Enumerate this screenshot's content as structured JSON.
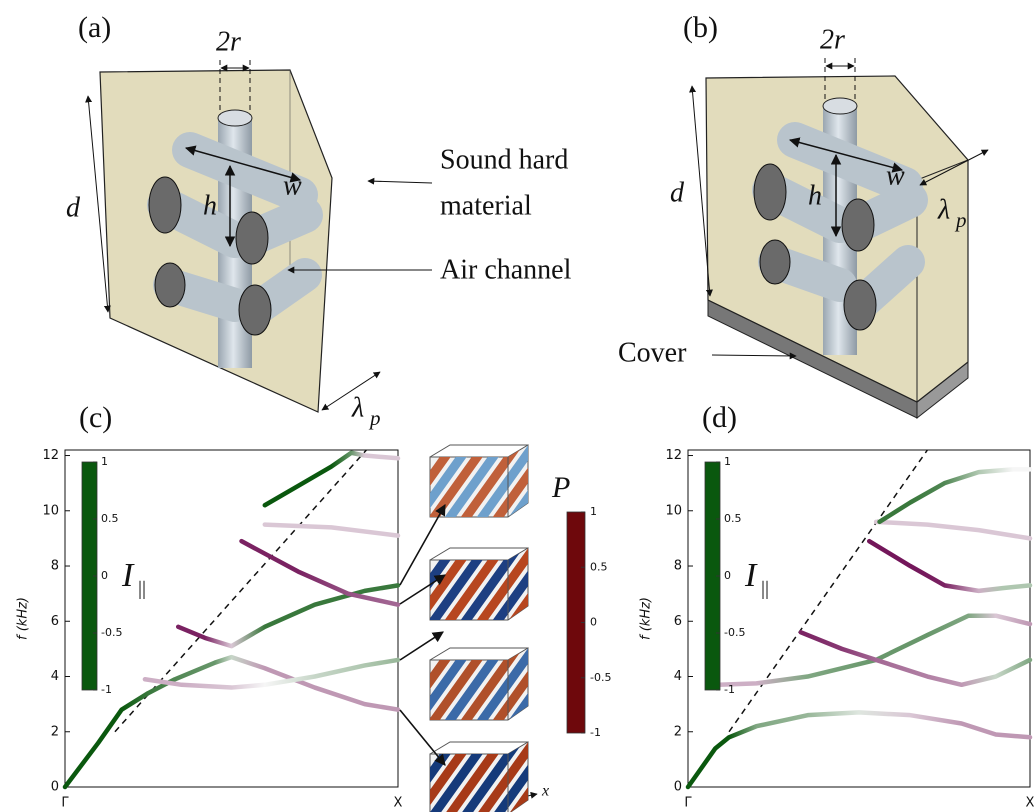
{
  "panel_a": {
    "label": "(a)",
    "diameter_label": "2r",
    "depth_label": "d",
    "height_label": "h",
    "width_label": "w",
    "material_label": [
      "Sound hard",
      "material"
    ],
    "channel_label": "Air channel",
    "period_label": {
      "symbol": "λ",
      "subscript": "p"
    }
  },
  "panel_b": {
    "label": "(b)",
    "diameter_label": "2r",
    "depth_label": "d",
    "height_label": "h",
    "width_label": "w",
    "period_label": {
      "symbol": "λ",
      "subscript": "p"
    },
    "cover_label": "Cover"
  },
  "chart_data": [
    {
      "type": "line",
      "panel_label": "(c)",
      "ylabel": "f (kHz)",
      "xlim": [
        0,
        1
      ],
      "ylim": [
        0,
        12.2
      ],
      "yticks": [
        0,
        2,
        4,
        6,
        8,
        10,
        12
      ],
      "xticks": [
        {
          "value": 0,
          "label": "Γ"
        },
        {
          "value": 1,
          "label": "X"
        }
      ],
      "light_line": {
        "x": [
          0.15,
          0.905
        ],
        "values": [
          2.0,
          12.2
        ]
      },
      "colorbar": {
        "label": "I",
        "subscript": "||",
        "lim": [
          -1,
          1
        ],
        "ticks": [
          1,
          0.5,
          0,
          -0.5,
          -1
        ]
      },
      "series": [
        {
          "x": [
            0,
            0.1,
            0.17,
            0.25,
            0.33,
            0.45,
            0.5,
            0.6,
            0.75,
            0.9,
            1
          ],
          "values": [
            0,
            1.6,
            2.8,
            3.4,
            3.9,
            4.5,
            4.7,
            4.3,
            3.6,
            3.0,
            2.8
          ],
          "intensity": [
            1,
            1,
            1,
            0.8,
            0.7,
            0.6,
            0.2,
            -0.4,
            -0.4,
            -0.4,
            -0.4
          ]
        },
        {
          "x": [
            0.24,
            0.35,
            0.5,
            0.6,
            0.75,
            0.9,
            1
          ],
          "values": [
            3.9,
            3.7,
            3.6,
            3.7,
            4.0,
            4.4,
            4.6
          ],
          "intensity": [
            -0.3,
            -0.3,
            -0.2,
            0,
            0.2,
            0.3,
            0.4
          ]
        },
        {
          "x": [
            0.34,
            0.42,
            0.5,
            0.6,
            0.75,
            0.9,
            1
          ],
          "values": [
            5.8,
            5.4,
            5.1,
            5.8,
            6.6,
            7.1,
            7.3
          ],
          "intensity": [
            -0.9,
            -0.9,
            -0.2,
            0.8,
            0.8,
            0.8,
            0.8
          ]
        },
        {
          "x": [
            0.53,
            0.7,
            0.85,
            1
          ],
          "values": [
            8.9,
            7.8,
            7.0,
            6.6
          ],
          "intensity": [
            -0.9,
            -0.9,
            -0.7,
            -0.6
          ]
        },
        {
          "x": [
            0.6,
            0.8,
            1
          ],
          "values": [
            9.5,
            9.4,
            9.1
          ],
          "intensity": [
            -0.2,
            -0.2,
            -0.2
          ]
        },
        {
          "x": [
            0.6,
            0.7,
            0.8,
            0.86,
            0.9,
            1
          ],
          "values": [
            10.2,
            10.9,
            11.6,
            12.1,
            12.0,
            11.9
          ],
          "intensity": [
            1,
            1,
            1,
            0.6,
            -0.2,
            -0.2
          ]
        }
      ]
    },
    {
      "type": "line",
      "panel_label": "(d)",
      "ylabel": "f (kHz)",
      "xlim": [
        0,
        1
      ],
      "ylim": [
        0,
        12.2
      ],
      "yticks": [
        0,
        2,
        4,
        6,
        8,
        10,
        12
      ],
      "xticks": [
        {
          "value": 0,
          "label": "Γ"
        },
        {
          "value": 1,
          "label": "X"
        }
      ],
      "light_line": {
        "x": [
          0.12,
          0.7
        ],
        "values": [
          2.0,
          12.2
        ]
      },
      "colorbar": {
        "label": "I",
        "subscript": "||",
        "lim": [
          -1,
          1
        ],
        "ticks": [
          1,
          0.5,
          0,
          -0.5,
          -1
        ]
      },
      "series": [
        {
          "x": [
            0,
            0.08,
            0.12,
            0.2,
            0.35,
            0.5,
            0.65,
            0.8,
            0.9,
            1
          ],
          "values": [
            0,
            1.4,
            1.8,
            2.2,
            2.6,
            2.7,
            2.6,
            2.3,
            1.9,
            1.8
          ],
          "intensity": [
            1,
            1,
            1,
            0.5,
            0.4,
            0.1,
            -0.2,
            -0.4,
            -0.4,
            -0.4
          ]
        },
        {
          "x": [
            0.09,
            0.2,
            0.35,
            0.55,
            0.7,
            0.82,
            0.9,
            1
          ],
          "values": [
            3.7,
            3.75,
            4.0,
            4.6,
            5.5,
            6.2,
            6.2,
            5.9
          ],
          "intensity": [
            -0.3,
            -0.3,
            0.5,
            0.6,
            0.6,
            0.5,
            -0.2,
            -0.4
          ]
        },
        {
          "x": [
            0.33,
            0.45,
            0.55,
            0.7,
            0.8,
            0.9,
            1
          ],
          "values": [
            5.6,
            5.0,
            4.6,
            4.0,
            3.7,
            4.0,
            4.6
          ],
          "intensity": [
            -0.9,
            -0.8,
            -0.6,
            -0.5,
            -0.4,
            0.2,
            0.5
          ]
        },
        {
          "x": [
            0.53,
            0.65,
            0.75,
            0.85,
            0.92,
            1
          ],
          "values": [
            8.9,
            8.0,
            7.3,
            7.1,
            7.2,
            7.3
          ],
          "intensity": [
            -0.95,
            -0.95,
            -0.9,
            -0.3,
            0.3,
            0.3
          ]
        },
        {
          "x": [
            0.55,
            0.7,
            0.85,
            1
          ],
          "values": [
            9.6,
            9.5,
            9.3,
            9.0
          ],
          "intensity": [
            -0.2,
            -0.2,
            -0.2,
            -0.2
          ]
        },
        {
          "x": [
            0.56,
            0.65,
            0.75,
            0.85,
            0.95,
            1
          ],
          "values": [
            9.6,
            10.3,
            11.0,
            11.4,
            11.5,
            11.5
          ],
          "intensity": [
            0.8,
            0.8,
            0.7,
            0.3,
            0,
            0
          ]
        }
      ]
    }
  ],
  "mode_colorbar": {
    "label": "P",
    "lim": [
      -1,
      1
    ],
    "ticks": [
      1,
      0.5,
      0,
      -0.5,
      -1
    ],
    "axis_label": "x"
  }
}
